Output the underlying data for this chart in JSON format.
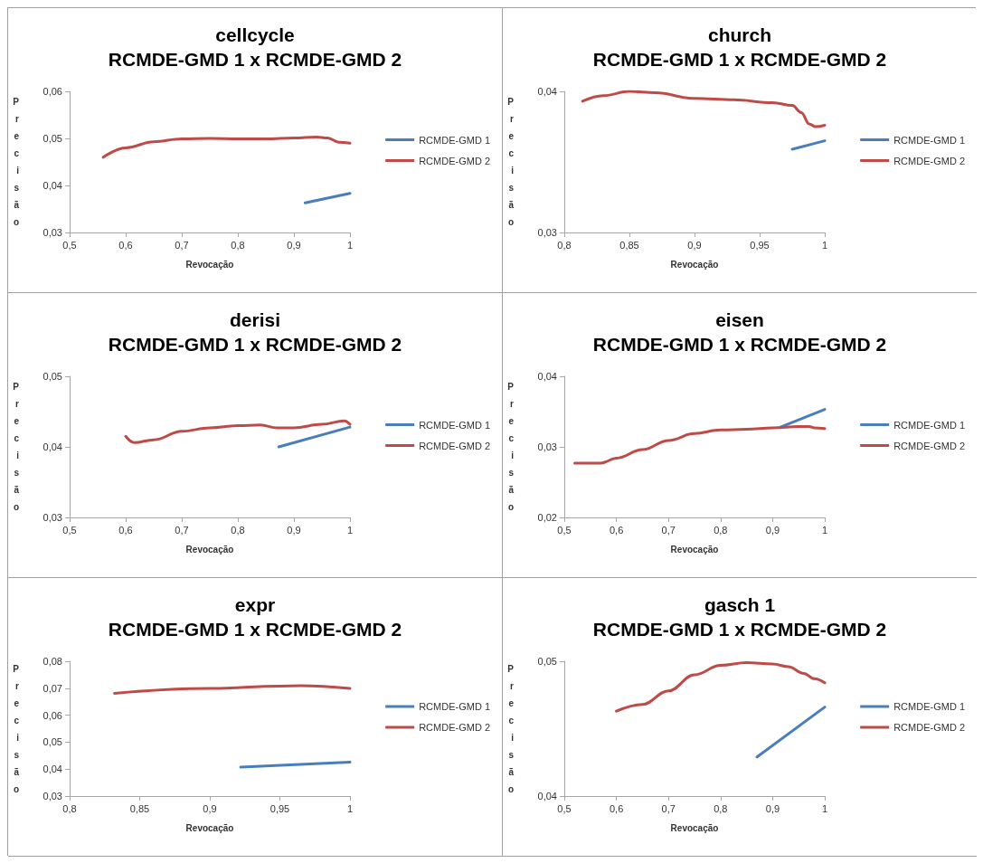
{
  "chart_data": [
    {
      "type": "line",
      "title": "cellcycle",
      "subtitle": "RCMDE-GMD 1 x RCMDE-GMD 2",
      "xlabel": "Revocação",
      "ylabel": "Precisão",
      "legend": "right",
      "grid": false,
      "marker": "none",
      "line_style": "solid",
      "xlim": [
        0.5,
        1
      ],
      "xticks": [
        {
          "value": 0.5,
          "label": "0,5"
        },
        {
          "value": 0.6,
          "label": "0,6"
        },
        {
          "value": 0.7,
          "label": "0,7"
        },
        {
          "value": 0.8,
          "label": "0,8"
        },
        {
          "value": 0.9,
          "label": "0,9"
        },
        {
          "value": 1,
          "label": "1"
        }
      ],
      "ylim": [
        0.03,
        0.06
      ],
      "yticks": [
        {
          "value": 0.03,
          "label": "0,03"
        },
        {
          "value": 0.04,
          "label": "0,04"
        },
        {
          "value": 0.05,
          "label": "0,05"
        },
        {
          "value": 0.06,
          "label": "0,06"
        }
      ],
      "series": [
        {
          "name": "RCMDE-GMD 1",
          "color": "#4a7ebb",
          "x": [
            0.92,
            1
          ],
          "values": [
            0.0363,
            0.0383
          ]
        },
        {
          "name": "RCMDE-GMD 2",
          "color": "#be4b48",
          "x": [
            0.56,
            0.6,
            0.65,
            0.7,
            0.75,
            0.8,
            0.85,
            0.9,
            0.94,
            0.96,
            0.98,
            1
          ],
          "values": [
            0.046,
            0.048,
            0.0493,
            0.0499,
            0.05,
            0.0499,
            0.0499,
            0.0501,
            0.0503,
            0.0501,
            0.0492,
            0.049
          ]
        }
      ]
    },
    {
      "type": "line",
      "title": "church",
      "subtitle": "RCMDE-GMD 1 x RCMDE-GMD 2",
      "xlabel": "Revocação",
      "ylabel": "Precisão",
      "legend": "right",
      "grid": false,
      "marker": "none",
      "line_style": "solid",
      "xlim": [
        0.8,
        1
      ],
      "xticks": [
        {
          "value": 0.8,
          "label": "0,8"
        },
        {
          "value": 0.85,
          "label": "0,85"
        },
        {
          "value": 0.9,
          "label": "0,9"
        },
        {
          "value": 0.95,
          "label": "0,95"
        },
        {
          "value": 1,
          "label": "1"
        }
      ],
      "ylim": [
        0.03,
        0.04
      ],
      "yticks": [
        {
          "value": 0.03,
          "label": "0,03"
        },
        {
          "value": 0.04,
          "label": "0,04"
        }
      ],
      "series": [
        {
          "name": "RCMDE-GMD 1",
          "color": "#4a7ebb",
          "x": [
            0.975,
            1
          ],
          "values": [
            0.0359,
            0.0365
          ]
        },
        {
          "name": "RCMDE-GMD 2",
          "color": "#be4b48",
          "x": [
            0.814,
            0.83,
            0.85,
            0.87,
            0.9,
            0.93,
            0.96,
            0.975,
            0.982,
            0.988,
            0.993,
            1
          ],
          "values": [
            0.0393,
            0.0397,
            0.04,
            0.0399,
            0.0395,
            0.0394,
            0.0392,
            0.039,
            0.0385,
            0.0377,
            0.0375,
            0.0376
          ]
        }
      ]
    },
    {
      "type": "line",
      "title": "derisi",
      "subtitle": "RCMDE-GMD 1 x RCMDE-GMD 2",
      "xlabel": "Revocação",
      "ylabel": "Precisão",
      "legend": "right",
      "grid": false,
      "marker": "none",
      "line_style": "solid",
      "xlim": [
        0.5,
        1
      ],
      "xticks": [
        {
          "value": 0.5,
          "label": "0,5"
        },
        {
          "value": 0.6,
          "label": "0,6"
        },
        {
          "value": 0.7,
          "label": "0,7"
        },
        {
          "value": 0.8,
          "label": "0,8"
        },
        {
          "value": 0.9,
          "label": "0,9"
        },
        {
          "value": 1,
          "label": "1"
        }
      ],
      "ylim": [
        0.03,
        0.05
      ],
      "yticks": [
        {
          "value": 0.03,
          "label": "0,03"
        },
        {
          "value": 0.04,
          "label": "0,04"
        },
        {
          "value": 0.05,
          "label": "0,05"
        }
      ],
      "series": [
        {
          "name": "RCMDE-GMD 1",
          "color": "#4a7ebb",
          "x": [
            0.873,
            1
          ],
          "values": [
            0.04,
            0.0428
          ]
        },
        {
          "name": "RCMDE-GMD 2",
          "color": "#be4b48",
          "x": [
            0.6,
            0.615,
            0.65,
            0.7,
            0.75,
            0.8,
            0.84,
            0.87,
            0.9,
            0.95,
            0.99,
            1
          ],
          "values": [
            0.0415,
            0.0406,
            0.041,
            0.0422,
            0.0427,
            0.043,
            0.0431,
            0.0427,
            0.0427,
            0.0432,
            0.0437,
            0.0432
          ]
        }
      ]
    },
    {
      "type": "line",
      "title": "eisen",
      "subtitle": "RCMDE-GMD 1 x RCMDE-GMD 2",
      "xlabel": "Revocação",
      "ylabel": "Precisão",
      "legend": "right",
      "grid": false,
      "marker": "none",
      "line_style": "solid",
      "xlim": [
        0.5,
        1
      ],
      "xticks": [
        {
          "value": 0.5,
          "label": "0,5"
        },
        {
          "value": 0.6,
          "label": "0,6"
        },
        {
          "value": 0.7,
          "label": "0,7"
        },
        {
          "value": 0.8,
          "label": "0,8"
        },
        {
          "value": 0.9,
          "label": "0,9"
        },
        {
          "value": 1,
          "label": "1"
        }
      ],
      "ylim": [
        0.02,
        0.04
      ],
      "yticks": [
        {
          "value": 0.02,
          "label": "0,02"
        },
        {
          "value": 0.03,
          "label": "0,03"
        },
        {
          "value": 0.04,
          "label": "0,04"
        }
      ],
      "series": [
        {
          "name": "RCMDE-GMD 1",
          "color": "#4a7ebb",
          "x": [
            0.915,
            1
          ],
          "values": [
            0.0328,
            0.0353
          ]
        },
        {
          "name": "RCMDE-GMD 2",
          "color": "#be4b48",
          "x": [
            0.52,
            0.57,
            0.6,
            0.65,
            0.7,
            0.75,
            0.8,
            0.85,
            0.9,
            0.95,
            0.97,
            0.98,
            1
          ],
          "values": [
            0.0277,
            0.0277,
            0.0284,
            0.0296,
            0.0309,
            0.0319,
            0.0324,
            0.0325,
            0.0327,
            0.0329,
            0.0329,
            0.0327,
            0.0326
          ]
        }
      ]
    },
    {
      "type": "line",
      "title": "expr",
      "subtitle": "RCMDE-GMD 1 x RCMDE-GMD 2",
      "xlabel": "Revocação",
      "ylabel": "Precisão",
      "legend": "right",
      "grid": false,
      "marker": "none",
      "line_style": "solid",
      "xlim": [
        0.8,
        1
      ],
      "xticks": [
        {
          "value": 0.8,
          "label": "0,8"
        },
        {
          "value": 0.85,
          "label": "0,85"
        },
        {
          "value": 0.9,
          "label": "0,9"
        },
        {
          "value": 0.95,
          "label": "0,95"
        },
        {
          "value": 1,
          "label": "1"
        }
      ],
      "ylim": [
        0.03,
        0.08
      ],
      "yticks": [
        {
          "value": 0.03,
          "label": "0,03"
        },
        {
          "value": 0.04,
          "label": "0,04"
        },
        {
          "value": 0.05,
          "label": "0,05"
        },
        {
          "value": 0.06,
          "label": "0,06"
        },
        {
          "value": 0.07,
          "label": "0,07"
        },
        {
          "value": 0.08,
          "label": "0,08"
        }
      ],
      "series": [
        {
          "name": "RCMDE-GMD 1",
          "color": "#4a7ebb",
          "x": [
            0.922,
            1
          ],
          "values": [
            0.0407,
            0.0426
          ]
        },
        {
          "name": "RCMDE-GMD 2",
          "color": "#be4b48",
          "x": [
            0.832,
            0.9,
            0.95,
            0.965,
            1
          ],
          "values": [
            0.0681,
            0.0699,
            0.0708,
            0.0709,
            0.0699
          ]
        }
      ]
    },
    {
      "type": "line",
      "title": "gasch 1",
      "subtitle": "RCMDE-GMD 1 x RCMDE-GMD 2",
      "xlabel": "Revocação",
      "ylabel": "Precisão",
      "legend": "right",
      "grid": false,
      "marker": "none",
      "line_style": "solid",
      "xlim": [
        0.5,
        1
      ],
      "xticks": [
        {
          "value": 0.5,
          "label": "0,5"
        },
        {
          "value": 0.6,
          "label": "0,6"
        },
        {
          "value": 0.7,
          "label": "0,7"
        },
        {
          "value": 0.8,
          "label": "0,8"
        },
        {
          "value": 0.9,
          "label": "0,9"
        },
        {
          "value": 1,
          "label": "1"
        }
      ],
      "ylim": [
        0.04,
        0.05
      ],
      "yticks": [
        {
          "value": 0.04,
          "label": "0,04"
        },
        {
          "value": 0.05,
          "label": "0,05"
        }
      ],
      "series": [
        {
          "name": "RCMDE-GMD 1",
          "color": "#4a7ebb",
          "x": [
            0.87,
            1
          ],
          "values": [
            0.0429,
            0.0466
          ]
        },
        {
          "name": "RCMDE-GMD 2",
          "color": "#be4b48",
          "x": [
            0.6,
            0.65,
            0.7,
            0.75,
            0.8,
            0.85,
            0.9,
            0.93,
            0.96,
            0.98,
            1
          ],
          "values": [
            0.0463,
            0.0468,
            0.0478,
            0.049,
            0.0497,
            0.0499,
            0.0498,
            0.0496,
            0.0491,
            0.0487,
            0.0484
          ]
        }
      ]
    }
  ]
}
